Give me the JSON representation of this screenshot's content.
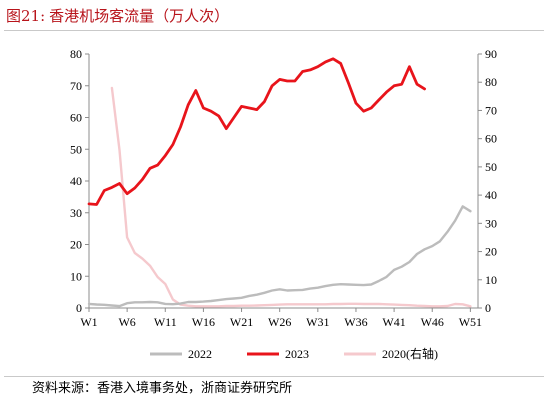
{
  "figure": {
    "label": "图21:",
    "title": "香港机场客流量（万人次）",
    "source": "资料来源：香港入境事务处，浙商证券研究所"
  },
  "colors": {
    "s2022": "#bcbcbc",
    "s2023": "#e8141b",
    "s2020": "#f5c9cd",
    "axis": "#8c8c8c",
    "title": "#b8141b"
  },
  "chart_data": {
    "type": "line",
    "x_ticks": [
      "W1",
      "W6",
      "W11",
      "W16",
      "W21",
      "W26",
      "W31",
      "W36",
      "W41",
      "W46",
      "W51"
    ],
    "xlim": [
      1,
      52
    ],
    "y_left": {
      "lim": [
        0,
        80
      ],
      "ticks": [
        "0",
        "10",
        "20",
        "30",
        "40",
        "50",
        "60",
        "70",
        "80"
      ]
    },
    "y_right": {
      "lim": [
        0,
        90
      ],
      "ticks": [
        "0",
        "10",
        "20",
        "30",
        "40",
        "50",
        "60",
        "70",
        "80",
        "90"
      ]
    },
    "legend_position": "bottom",
    "grid": false,
    "series": [
      {
        "name": "2022",
        "color_key": "s2022",
        "axis": "left",
        "points": [
          [
            1,
            1.3
          ],
          [
            2,
            1.1
          ],
          [
            3,
            1.0
          ],
          [
            4,
            0.8
          ],
          [
            5,
            0.6
          ],
          [
            6,
            1.5
          ],
          [
            7,
            1.8
          ],
          [
            8,
            1.8
          ],
          [
            9,
            1.9
          ],
          [
            10,
            1.8
          ],
          [
            11,
            1.3
          ],
          [
            12,
            1.2
          ],
          [
            13,
            1.4
          ],
          [
            14,
            1.9
          ],
          [
            15,
            1.9
          ],
          [
            16,
            2.0
          ],
          [
            17,
            2.2
          ],
          [
            18,
            2.5
          ],
          [
            19,
            2.8
          ],
          [
            20,
            3.0
          ],
          [
            21,
            3.2
          ],
          [
            22,
            3.8
          ],
          [
            23,
            4.2
          ],
          [
            24,
            4.8
          ],
          [
            25,
            5.5
          ],
          [
            26,
            5.9
          ],
          [
            27,
            5.5
          ],
          [
            28,
            5.6
          ],
          [
            29,
            5.7
          ],
          [
            30,
            6.1
          ],
          [
            31,
            6.4
          ],
          [
            32,
            6.9
          ],
          [
            33,
            7.3
          ],
          [
            34,
            7.5
          ],
          [
            35,
            7.4
          ],
          [
            36,
            7.3
          ],
          [
            37,
            7.2
          ],
          [
            38,
            7.4
          ],
          [
            39,
            8.5
          ],
          [
            40,
            9.8
          ],
          [
            41,
            12.0
          ],
          [
            42,
            13.0
          ],
          [
            43,
            14.5
          ],
          [
            44,
            17.0
          ],
          [
            45,
            18.5
          ],
          [
            46,
            19.5
          ],
          [
            47,
            21.0
          ],
          [
            48,
            24.0
          ],
          [
            49,
            27.5
          ],
          [
            50,
            32.0
          ],
          [
            51,
            30.5
          ]
        ]
      },
      {
        "name": "2023",
        "color_key": "s2023",
        "axis": "left",
        "points": [
          [
            1,
            32.8
          ],
          [
            2,
            32.6
          ],
          [
            3,
            37.0
          ],
          [
            4,
            38.0
          ],
          [
            5,
            39.2
          ],
          [
            6,
            36.0
          ],
          [
            7,
            37.8
          ],
          [
            8,
            40.5
          ],
          [
            9,
            44.0
          ],
          [
            10,
            45.0
          ],
          [
            11,
            48.0
          ],
          [
            12,
            51.5
          ],
          [
            13,
            57.0
          ],
          [
            14,
            64.0
          ],
          [
            15,
            68.5
          ],
          [
            16,
            63.0
          ],
          [
            17,
            62.0
          ],
          [
            18,
            60.5
          ],
          [
            19,
            56.5
          ],
          [
            20,
            60.0
          ],
          [
            21,
            63.5
          ],
          [
            22,
            63.0
          ],
          [
            23,
            62.5
          ],
          [
            24,
            65.0
          ],
          [
            25,
            70.0
          ],
          [
            26,
            72.0
          ],
          [
            27,
            71.5
          ],
          [
            28,
            71.5
          ],
          [
            29,
            74.5
          ],
          [
            30,
            75.0
          ],
          [
            31,
            76.0
          ],
          [
            32,
            77.5
          ],
          [
            33,
            78.5
          ],
          [
            34,
            77.0
          ],
          [
            35,
            71.0
          ],
          [
            36,
            64.5
          ],
          [
            37,
            62.0
          ],
          [
            38,
            63.0
          ],
          [
            39,
            65.5
          ],
          [
            40,
            68.0
          ],
          [
            41,
            70.0
          ],
          [
            42,
            70.5
          ],
          [
            43,
            76.0
          ],
          [
            44,
            70.5
          ],
          [
            45,
            69.0
          ]
        ]
      },
      {
        "name": "2020(右轴)",
        "color_key": "s2020",
        "axis": "right",
        "points": [
          [
            4,
            78.0
          ],
          [
            5,
            56.0
          ],
          [
            6,
            25.0
          ],
          [
            7,
            19.5
          ],
          [
            8,
            17.5
          ],
          [
            9,
            15.0
          ],
          [
            10,
            11.0
          ],
          [
            11,
            8.5
          ],
          [
            12,
            3.0
          ],
          [
            13,
            1.2
          ],
          [
            14,
            0.8
          ],
          [
            15,
            0.6
          ],
          [
            16,
            0.6
          ],
          [
            17,
            0.6
          ],
          [
            18,
            0.6
          ],
          [
            19,
            0.7
          ],
          [
            20,
            0.7
          ],
          [
            21,
            0.8
          ],
          [
            22,
            0.8
          ],
          [
            23,
            0.9
          ],
          [
            24,
            1.0
          ],
          [
            25,
            1.1
          ],
          [
            26,
            1.2
          ],
          [
            27,
            1.3
          ],
          [
            28,
            1.3
          ],
          [
            29,
            1.3
          ],
          [
            30,
            1.3
          ],
          [
            31,
            1.3
          ],
          [
            32,
            1.3
          ],
          [
            33,
            1.4
          ],
          [
            34,
            1.4
          ],
          [
            35,
            1.5
          ],
          [
            36,
            1.5
          ],
          [
            37,
            1.4
          ],
          [
            38,
            1.4
          ],
          [
            39,
            1.4
          ],
          [
            40,
            1.3
          ],
          [
            41,
            1.2
          ],
          [
            42,
            1.1
          ],
          [
            43,
            1.0
          ],
          [
            44,
            0.8
          ],
          [
            45,
            0.7
          ],
          [
            46,
            0.6
          ],
          [
            47,
            0.6
          ],
          [
            48,
            0.7
          ],
          [
            49,
            1.4
          ],
          [
            50,
            1.3
          ],
          [
            51,
            0.6
          ]
        ]
      }
    ]
  }
}
